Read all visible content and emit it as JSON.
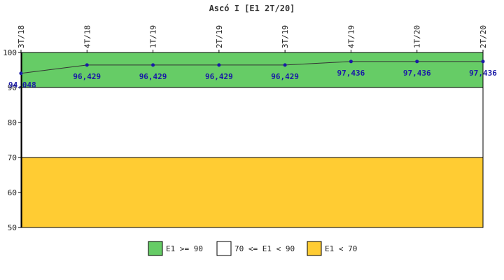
{
  "chart_data": {
    "type": "line",
    "title": "Ascó I [E1 2T/20]",
    "categories": [
      "3T/18",
      "4T/18",
      "1T/19",
      "2T/19",
      "3T/19",
      "4T/19",
      "1T/20",
      "2T/20"
    ],
    "series": [
      {
        "values": [
          94.048,
          96.429,
          96.429,
          96.429,
          96.429,
          97.436,
          97.436,
          97.436
        ],
        "labels": [
          "94,048",
          "96,429",
          "96,429",
          "96,429",
          "96,429",
          "97,436",
          "97,436",
          "97,436"
        ],
        "color": "#1a1aa6"
      }
    ],
    "ylim": [
      50,
      100
    ],
    "yticks": [
      "50",
      "60",
      "70",
      "80",
      "90",
      "100"
    ],
    "bands": [
      {
        "from": 90,
        "to": 100,
        "color": "#66cc66",
        "label": "E1 >= 90"
      },
      {
        "from": 70,
        "to": 90,
        "color": "#ffffff",
        "label": "70 <= E1 < 90"
      },
      {
        "from": 50,
        "to": 70,
        "color": "#ffcc33",
        "label": "E1 < 70"
      }
    ],
    "legend_position": "bottom-center",
    "grid": false
  }
}
